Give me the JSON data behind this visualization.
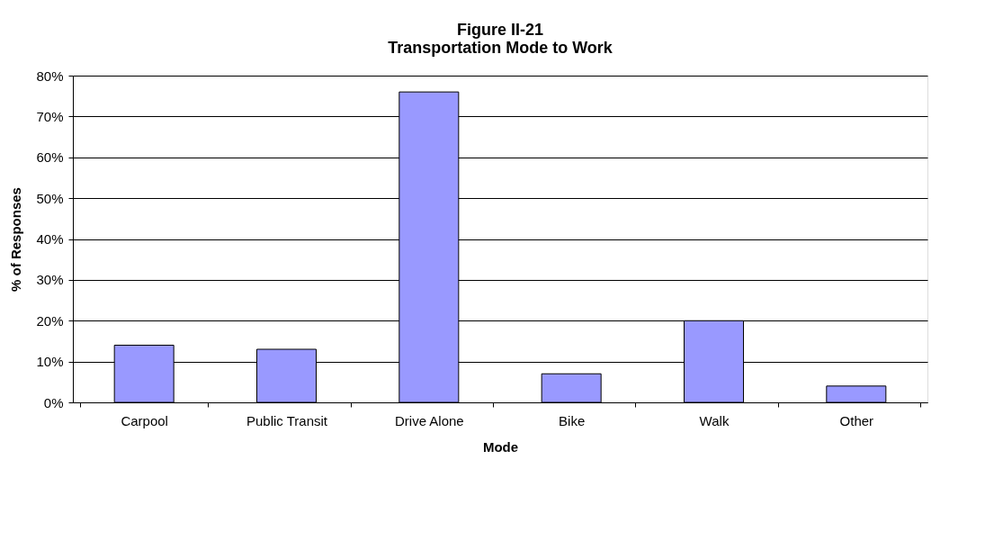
{
  "chart_data": {
    "type": "bar",
    "title": "Figure II-21\nTransportation Mode to Work",
    "xlabel": "Mode",
    "ylabel": "% of Responses",
    "categories": [
      "Carpool",
      "Public Transit",
      "Drive Alone",
      "Bike",
      "Walk",
      "Other"
    ],
    "values": [
      14,
      13,
      76,
      7,
      20,
      4
    ],
    "color": "#9999ff",
    "ylim": [
      0,
      80
    ],
    "yticks": [
      {
        "value": 0,
        "label": "0%"
      },
      {
        "value": 10,
        "label": "10%"
      },
      {
        "value": 20,
        "label": "20%"
      },
      {
        "value": 30,
        "label": "30%"
      },
      {
        "value": 40,
        "label": "40%"
      },
      {
        "value": 50,
        "label": "50%"
      },
      {
        "value": 60,
        "label": "60%"
      },
      {
        "value": 70,
        "label": "70%"
      },
      {
        "value": 80,
        "label": "80%"
      }
    ],
    "grid": "y",
    "legend": false
  }
}
